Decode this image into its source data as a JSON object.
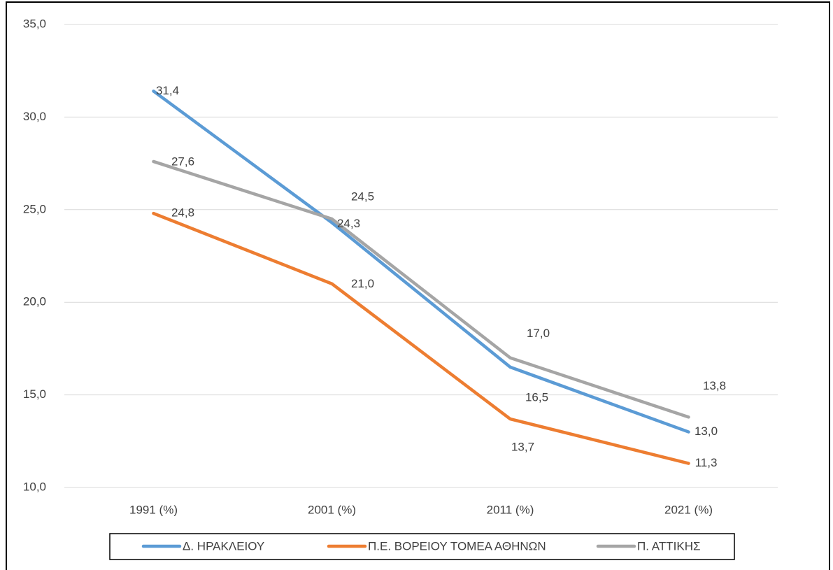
{
  "chart_data": {
    "type": "line",
    "categories": [
      "1991 (%)",
      "2001 (%)",
      "2011 (%)",
      "2021 (%)"
    ],
    "series": [
      {
        "name": "Δ. ΗΡΑΚΛΕΙΟΥ",
        "color": "#5b9bd5",
        "values": [
          31.4,
          24.3,
          16.5,
          13.0
        ],
        "value_labels": [
          "31,4",
          "24,3",
          "16,5",
          "13,0"
        ]
      },
      {
        "name": "Π.Ε. ΒΟΡΕΙΟΥ ΤΟΜΕΑ ΑΘΗΝΩΝ",
        "color": "#ed7d31",
        "values": [
          24.8,
          21.0,
          13.7,
          11.3
        ],
        "value_labels": [
          "24,8",
          "21,0",
          "13,7",
          "11,3"
        ]
      },
      {
        "name": "Π. ΑΤΤΙΚΗΣ",
        "color": "#a5a5a5",
        "values": [
          27.6,
          24.5,
          17.0,
          13.8
        ],
        "value_labels": [
          "27,6",
          "24,5",
          "17,0",
          "13,8"
        ]
      }
    ],
    "ylim": [
      10,
      35
    ],
    "yticks": [
      {
        "value": 10,
        "label": "10,0"
      },
      {
        "value": 15,
        "label": "15,0"
      },
      {
        "value": 20,
        "label": "20,0"
      },
      {
        "value": 25,
        "label": "25,0"
      },
      {
        "value": 30,
        "label": "30,0"
      },
      {
        "value": 35,
        "label": "35,0"
      }
    ],
    "grid": true,
    "legend": "bottom"
  }
}
